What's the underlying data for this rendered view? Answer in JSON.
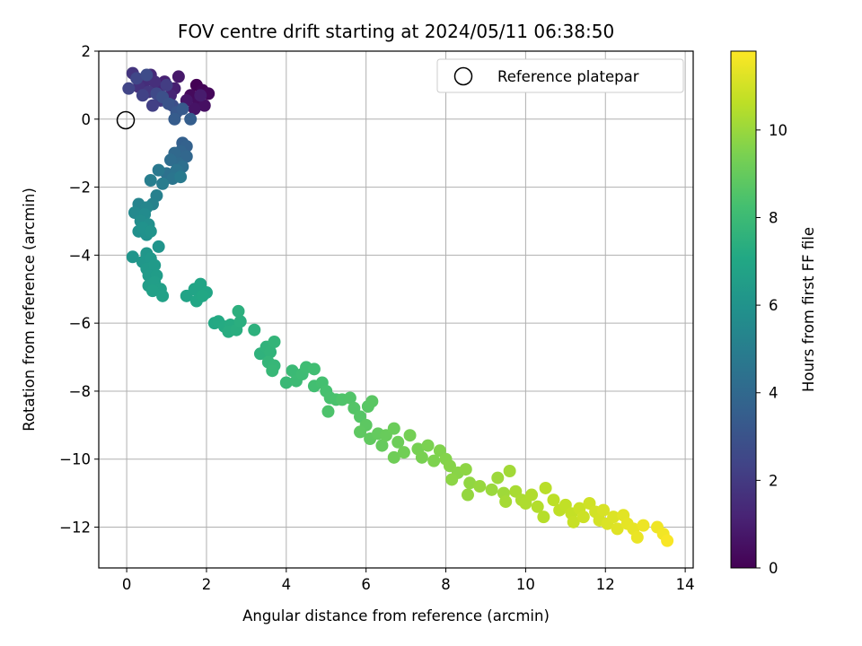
{
  "chart_data": {
    "type": "scatter",
    "title": "FOV centre drift starting at 2024/05/11 06:38:50",
    "xlabel": "Angular distance from reference (arcmin)",
    "ylabel": "Rotation from reference (arcmin)",
    "colorbar_label": "Hours from first FF file",
    "xlim": [
      -0.7,
      14.2
    ],
    "ylim": [
      -13.2,
      2.0
    ],
    "xticks": [
      0,
      2,
      4,
      6,
      8,
      10,
      12,
      14
    ],
    "yticks": [
      2,
      0,
      -2,
      -4,
      -6,
      -8,
      -10,
      -12
    ],
    "colorbar_range": [
      0,
      11.8
    ],
    "colorbar_ticks": [
      0,
      2,
      4,
      6,
      8,
      10
    ],
    "colormap": "viridis",
    "grid": true,
    "legend_position": "top-right",
    "reference": {
      "label": "Reference platepar",
      "x": 0,
      "y": 0
    },
    "points": [
      [
        1.75,
        1.0,
        0.0
      ],
      [
        1.9,
        0.85,
        0.1
      ],
      [
        2.05,
        0.75,
        0.2
      ],
      [
        1.6,
        0.7,
        0.3
      ],
      [
        1.8,
        0.5,
        0.4
      ],
      [
        1.95,
        0.4,
        0.5
      ],
      [
        1.7,
        0.3,
        0.6
      ],
      [
        1.5,
        0.55,
        0.7
      ],
      [
        1.3,
        1.25,
        0.8
      ],
      [
        1.85,
        0.7,
        0.9
      ],
      [
        1.2,
        0.9,
        1.0
      ],
      [
        0.95,
        1.1,
        1.1
      ],
      [
        1.1,
        0.7,
        1.2
      ],
      [
        0.8,
        0.9,
        1.3
      ],
      [
        0.6,
        1.3,
        1.4
      ],
      [
        0.45,
        1.1,
        1.5
      ],
      [
        0.7,
        1.1,
        1.6
      ],
      [
        0.3,
        0.95,
        1.7
      ],
      [
        0.15,
        1.35,
        1.8
      ],
      [
        0.55,
        0.8,
        1.9
      ],
      [
        0.85,
        0.55,
        2.0
      ],
      [
        1.0,
        1.0,
        2.1
      ],
      [
        0.65,
        0.4,
        2.2
      ],
      [
        0.4,
        0.7,
        2.3
      ],
      [
        0.05,
        0.9,
        2.4
      ],
      [
        0.25,
        1.2,
        2.5
      ],
      [
        0.75,
        0.75,
        2.6
      ],
      [
        0.5,
        1.3,
        2.7
      ],
      [
        1.15,
        0.4,
        2.8
      ],
      [
        0.9,
        0.65,
        2.9
      ],
      [
        1.05,
        0.45,
        3.0
      ],
      [
        1.25,
        0.2,
        3.2
      ],
      [
        1.4,
        0.3,
        3.3
      ],
      [
        1.2,
        0.0,
        3.4
      ],
      [
        1.6,
        0.0,
        3.5
      ],
      [
        1.4,
        -0.7,
        3.6
      ],
      [
        1.5,
        -0.8,
        3.7
      ],
      [
        1.35,
        -0.95,
        3.8
      ],
      [
        1.5,
        -1.1,
        3.9
      ],
      [
        1.2,
        -1.0,
        4.0
      ],
      [
        1.3,
        -1.3,
        4.1
      ],
      [
        1.1,
        -1.2,
        4.2
      ],
      [
        1.4,
        -1.4,
        4.3
      ],
      [
        1.0,
        -1.6,
        4.4
      ],
      [
        1.25,
        -1.5,
        4.5
      ],
      [
        1.15,
        -1.75,
        4.6
      ],
      [
        0.8,
        -1.5,
        4.7
      ],
      [
        1.35,
        -1.7,
        4.8
      ],
      [
        0.9,
        -1.9,
        4.9
      ],
      [
        0.6,
        -1.8,
        5.0
      ],
      [
        0.75,
        -2.25,
        5.1
      ],
      [
        0.65,
        -2.5,
        5.2
      ],
      [
        0.3,
        -2.5,
        5.3
      ],
      [
        0.5,
        -2.6,
        5.4
      ],
      [
        0.2,
        -2.75,
        5.5
      ],
      [
        0.45,
        -2.8,
        5.6
      ],
      [
        0.35,
        -3.0,
        5.7
      ],
      [
        0.55,
        -3.1,
        5.8
      ],
      [
        0.3,
        -3.3,
        5.85
      ],
      [
        0.5,
        -3.4,
        5.9
      ],
      [
        0.4,
        -3.2,
        5.95
      ],
      [
        0.6,
        -3.3,
        6.0
      ],
      [
        0.8,
        -3.75,
        6.05
      ],
      [
        0.15,
        -4.05,
        6.1
      ],
      [
        0.5,
        -3.95,
        6.15
      ],
      [
        0.4,
        -4.2,
        6.2
      ],
      [
        0.6,
        -4.1,
        6.25
      ],
      [
        0.5,
        -4.4,
        6.3
      ],
      [
        0.7,
        -4.3,
        6.35
      ],
      [
        0.55,
        -4.6,
        6.4
      ],
      [
        0.75,
        -4.6,
        6.45
      ],
      [
        0.55,
        -4.9,
        6.5
      ],
      [
        0.7,
        -4.8,
        6.55
      ],
      [
        0.85,
        -5.0,
        6.6
      ],
      [
        0.65,
        -5.05,
        6.65
      ],
      [
        0.9,
        -5.2,
        6.7
      ],
      [
        1.5,
        -5.2,
        6.8
      ],
      [
        1.7,
        -5.0,
        6.85
      ],
      [
        1.85,
        -4.85,
        6.9
      ],
      [
        2.0,
        -5.1,
        6.95
      ],
      [
        1.75,
        -5.35,
        7.0
      ],
      [
        1.9,
        -5.2,
        7.05
      ],
      [
        2.2,
        -6.0,
        7.1
      ],
      [
        2.3,
        -5.95,
        7.15
      ],
      [
        2.45,
        -6.1,
        7.2
      ],
      [
        2.6,
        -6.05,
        7.25
      ],
      [
        2.55,
        -6.25,
        7.3
      ],
      [
        2.75,
        -6.2,
        7.35
      ],
      [
        2.85,
        -5.95,
        7.4
      ],
      [
        2.8,
        -5.65,
        7.45
      ],
      [
        3.2,
        -6.2,
        7.5
      ],
      [
        3.35,
        -6.9,
        7.55
      ],
      [
        3.5,
        -6.7,
        7.6
      ],
      [
        3.6,
        -6.85,
        7.65
      ],
      [
        3.7,
        -6.55,
        7.7
      ],
      [
        3.55,
        -7.15,
        7.75
      ],
      [
        3.7,
        -7.25,
        7.8
      ],
      [
        3.65,
        -7.4,
        7.85
      ],
      [
        4.0,
        -7.75,
        7.9
      ],
      [
        4.15,
        -7.4,
        7.95
      ],
      [
        4.25,
        -7.7,
        8.0
      ],
      [
        4.4,
        -7.5,
        8.05
      ],
      [
        4.5,
        -7.3,
        8.1
      ],
      [
        4.7,
        -7.35,
        8.15
      ],
      [
        4.7,
        -7.85,
        8.2
      ],
      [
        4.9,
        -7.75,
        8.25
      ],
      [
        5.0,
        -8.0,
        8.3
      ],
      [
        5.1,
        -8.2,
        8.35
      ],
      [
        5.25,
        -8.25,
        8.4
      ],
      [
        5.05,
        -8.6,
        8.45
      ],
      [
        5.4,
        -8.25,
        8.5
      ],
      [
        5.6,
        -8.2,
        8.55
      ],
      [
        5.7,
        -8.5,
        8.6
      ],
      [
        5.85,
        -8.75,
        8.65
      ],
      [
        6.05,
        -8.45,
        8.7
      ],
      [
        6.15,
        -8.3,
        8.75
      ],
      [
        6.0,
        -9.0,
        8.8
      ],
      [
        5.85,
        -9.2,
        8.85
      ],
      [
        6.1,
        -9.4,
        8.9
      ],
      [
        6.3,
        -9.25,
        8.95
      ],
      [
        6.4,
        -9.6,
        9.0
      ],
      [
        6.5,
        -9.3,
        9.05
      ],
      [
        6.7,
        -9.1,
        9.1
      ],
      [
        6.8,
        -9.5,
        9.15
      ],
      [
        6.7,
        -9.95,
        9.2
      ],
      [
        6.95,
        -9.8,
        9.25
      ],
      [
        7.1,
        -9.3,
        9.3
      ],
      [
        7.3,
        -9.7,
        9.35
      ],
      [
        7.4,
        -9.95,
        9.4
      ],
      [
        7.55,
        -9.6,
        9.45
      ],
      [
        7.7,
        -10.05,
        9.5
      ],
      [
        7.85,
        -9.75,
        9.55
      ],
      [
        8.0,
        -10.0,
        9.6
      ],
      [
        8.1,
        -10.2,
        9.65
      ],
      [
        8.3,
        -10.4,
        9.7
      ],
      [
        8.15,
        -10.6,
        9.75
      ],
      [
        8.5,
        -10.3,
        9.8
      ],
      [
        8.6,
        -10.7,
        9.85
      ],
      [
        8.55,
        -11.05,
        9.9
      ],
      [
        8.85,
        -10.8,
        9.95
      ],
      [
        9.15,
        -10.9,
        10.0
      ],
      [
        9.3,
        -10.55,
        10.05
      ],
      [
        9.45,
        -11.0,
        10.1
      ],
      [
        9.6,
        -10.35,
        10.15
      ],
      [
        9.5,
        -11.25,
        10.2
      ],
      [
        9.75,
        -10.95,
        10.25
      ],
      [
        9.9,
        -11.2,
        10.3
      ],
      [
        10.0,
        -11.3,
        10.35
      ],
      [
        10.15,
        -11.05,
        10.4
      ],
      [
        10.3,
        -11.4,
        10.45
      ],
      [
        10.45,
        -11.7,
        10.5
      ],
      [
        10.5,
        -10.85,
        10.55
      ],
      [
        10.7,
        -11.2,
        10.6
      ],
      [
        10.85,
        -11.5,
        10.65
      ],
      [
        11.0,
        -11.35,
        10.7
      ],
      [
        11.15,
        -11.6,
        10.75
      ],
      [
        11.2,
        -11.85,
        10.8
      ],
      [
        11.35,
        -11.45,
        10.85
      ],
      [
        11.45,
        -11.7,
        10.9
      ],
      [
        11.6,
        -11.3,
        10.95
      ],
      [
        11.75,
        -11.55,
        11.0
      ],
      [
        11.85,
        -11.8,
        11.05
      ],
      [
        11.95,
        -11.5,
        11.1
      ],
      [
        12.05,
        -11.9,
        11.15
      ],
      [
        12.2,
        -11.7,
        11.2
      ],
      [
        12.3,
        -12.05,
        11.25
      ],
      [
        12.45,
        -11.65,
        11.3
      ],
      [
        12.55,
        -11.9,
        11.35
      ],
      [
        12.7,
        -12.05,
        11.4
      ],
      [
        12.8,
        -12.3,
        11.45
      ],
      [
        12.95,
        -11.95,
        11.5
      ],
      [
        13.3,
        -12.0,
        11.55
      ],
      [
        13.45,
        -12.2,
        11.6
      ],
      [
        13.55,
        -12.4,
        11.7
      ]
    ]
  }
}
